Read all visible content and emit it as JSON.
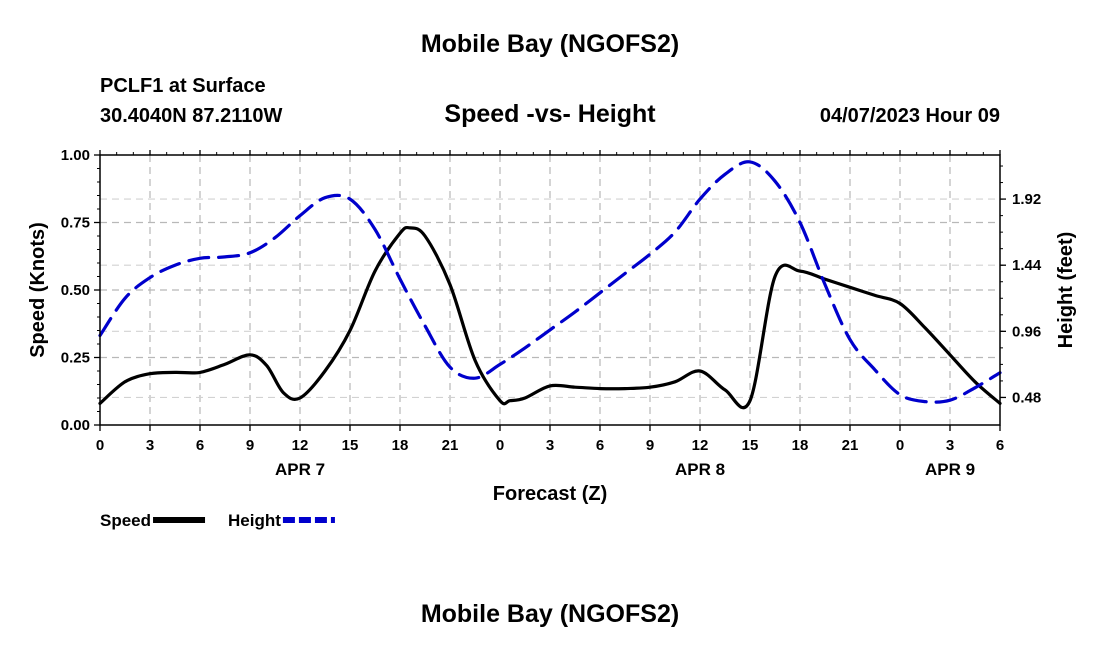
{
  "header": {
    "title": "Mobile Bay (NGOFS2)",
    "station": "PCLF1 at Surface",
    "coords": "30.4040N  87.2110W",
    "subtitle": "Speed -vs- Height",
    "datetime": "04/07/2023 Hour 09",
    "footer_title": "Mobile Bay (NGOFS2)"
  },
  "chart_data": {
    "type": "line",
    "xlabel": "Forecast (Z)",
    "ylabel_left": "Speed (Knots)",
    "ylabel_right": "Height (feet)",
    "xlim": [
      0,
      54
    ],
    "ylim_left": [
      0,
      1.0
    ],
    "ylim_right": [
      0.28,
      2.24
    ],
    "grid": true,
    "x_tick_values": [
      0,
      3,
      6,
      9,
      12,
      15,
      18,
      21,
      24,
      27,
      30,
      33,
      36,
      39,
      42,
      45,
      48,
      51,
      54
    ],
    "x_tick_labels": [
      "0",
      "3",
      "6",
      "9",
      "12",
      "15",
      "18",
      "21",
      "0",
      "3",
      "6",
      "9",
      "12",
      "15",
      "18",
      "21",
      "0",
      "3",
      "6"
    ],
    "date_labels": [
      {
        "text": "APR 7",
        "x": 12
      },
      {
        "text": "APR 8",
        "x": 36
      },
      {
        "text": "APR 9",
        "x": 51
      }
    ],
    "y_left_ticks": [
      "0.00",
      "0.25",
      "0.50",
      "0.75",
      "1.00"
    ],
    "y_right_ticks": [
      "0.48",
      "0.96",
      "1.44",
      "1.92"
    ],
    "legend": [
      {
        "name": "Speed",
        "color": "#000000",
        "style": "solid"
      },
      {
        "name": "Height",
        "color": "#0000cc",
        "style": "dashed"
      }
    ],
    "series": [
      {
        "name": "Speed",
        "axis": "left",
        "color": "#000000",
        "x": [
          0,
          1.5,
          3,
          4.5,
          6,
          7.5,
          9,
          10,
          11,
          12,
          13.5,
          15,
          16.5,
          18,
          18.6,
          19.5,
          21,
          22.5,
          24,
          24.6,
          25.5,
          27,
          28.5,
          30,
          31.5,
          33,
          34.5,
          36,
          37.5,
          39,
          40.5,
          42,
          43.5,
          45,
          46.5,
          48,
          49.5,
          51,
          52.5,
          54
        ],
        "y": [
          0.08,
          0.16,
          0.19,
          0.195,
          0.195,
          0.225,
          0.26,
          0.22,
          0.12,
          0.1,
          0.2,
          0.35,
          0.57,
          0.71,
          0.73,
          0.7,
          0.52,
          0.24,
          0.09,
          0.09,
          0.1,
          0.145,
          0.14,
          0.135,
          0.135,
          0.14,
          0.16,
          0.2,
          0.13,
          0.09,
          0.55,
          0.57,
          0.54,
          0.51,
          0.48,
          0.45,
          0.36,
          0.26,
          0.16,
          0.08
        ]
      },
      {
        "name": "Height",
        "axis": "right",
        "color": "#0000cc",
        "x": [
          0,
          1.5,
          3,
          4.5,
          6,
          7.5,
          9,
          10.5,
          12,
          13.5,
          15,
          16.5,
          18,
          19.5,
          21,
          22.5,
          24,
          25.5,
          27,
          28.5,
          30,
          31.5,
          33,
          34.5,
          36,
          37.5,
          39,
          40.5,
          42,
          43.5,
          45,
          46.5,
          48,
          49.5,
          51,
          52.5,
          54
        ],
        "y": [
          0.93,
          1.2,
          1.35,
          1.44,
          1.49,
          1.5,
          1.53,
          1.64,
          1.8,
          1.93,
          1.92,
          1.7,
          1.34,
          1.0,
          0.7,
          0.62,
          0.72,
          0.84,
          0.97,
          1.1,
          1.24,
          1.38,
          1.52,
          1.68,
          1.92,
          2.1,
          2.19,
          2.05,
          1.75,
          1.3,
          0.9,
          0.68,
          0.5,
          0.45,
          0.46,
          0.55,
          0.66
        ]
      }
    ]
  }
}
